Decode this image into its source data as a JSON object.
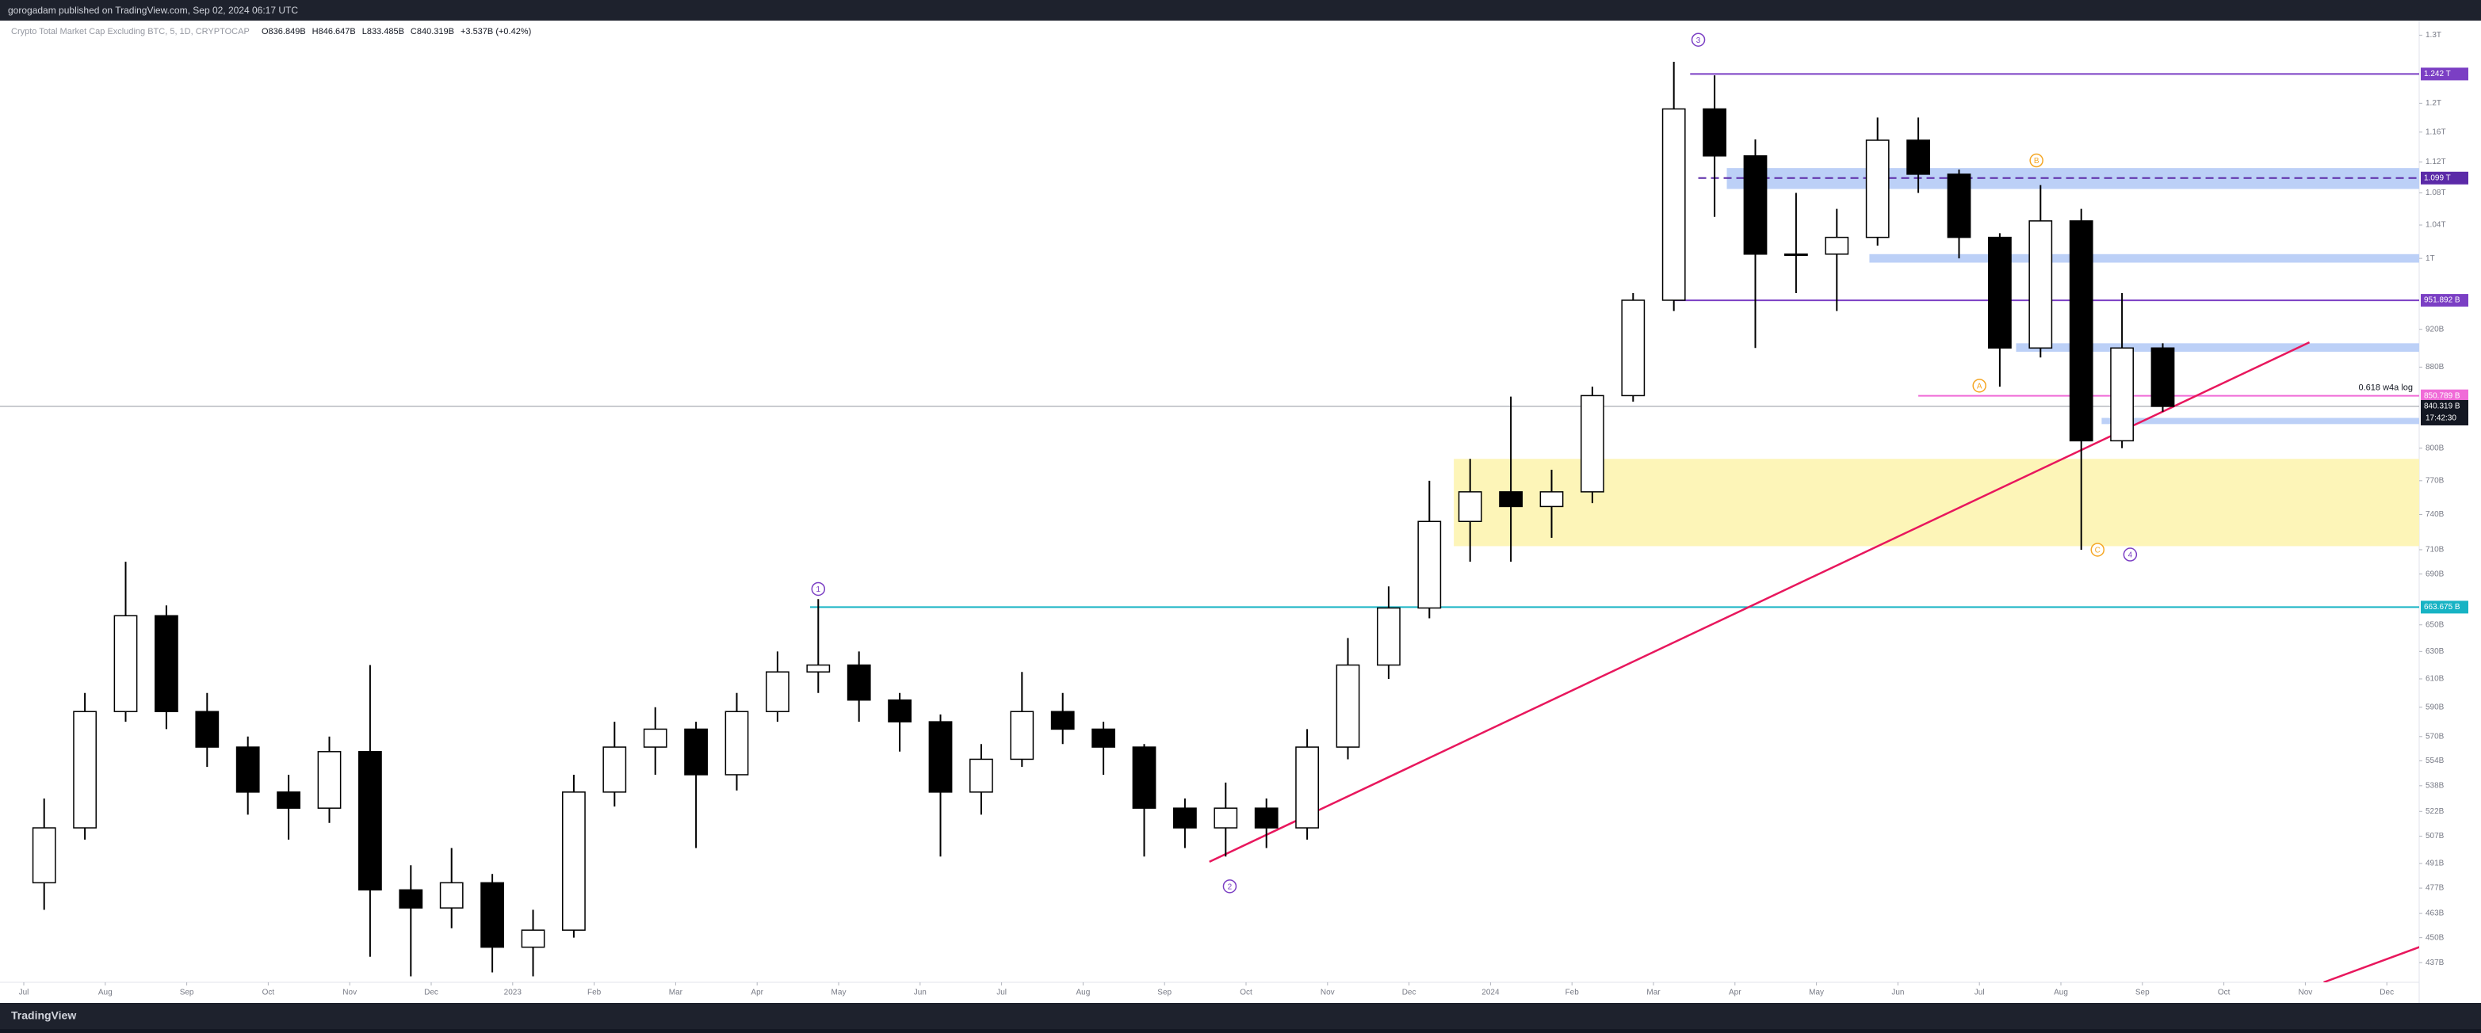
{
  "header": {
    "publisher": "gorogadam published on TradingView.com, Sep 02, 2024 06:17 UTC"
  },
  "footer": {
    "brand": "TradingView"
  },
  "chart_data": {
    "type": "candlestick",
    "title": "Crypto Total Market Cap Excluding BTC, 5, 1D, CRYPTOCAP",
    "ohlc_legend": [
      "O836.849B",
      "H846.647B",
      "L833.485B",
      "C840.319B",
      "+3.537B (+0.42%)"
    ],
    "categories": [
      "Jul",
      null,
      "Aug",
      null,
      "Sep",
      null,
      "Oct",
      null,
      "Nov",
      null,
      "Dec",
      null,
      "2023",
      null,
      "Feb",
      null,
      "Mar",
      null,
      "Apr",
      null,
      "May",
      null,
      "Jun",
      null,
      "Jul",
      null,
      "Aug",
      null,
      "Sep",
      null,
      "Oct",
      null,
      "Nov",
      null,
      "Dec",
      null,
      "2024",
      null,
      "Feb",
      null,
      "Mar",
      null,
      "Apr",
      null,
      "May",
      null,
      "Jun",
      null,
      "Jul",
      null,
      "Aug",
      null,
      "Sep",
      null,
      "Oct",
      null,
      "Nov",
      null,
      "Dec",
      null
    ],
    "open": [
      480,
      512,
      587,
      657,
      587,
      563,
      534,
      524,
      560,
      476,
      466,
      480,
      445,
      454,
      534,
      563,
      575,
      545,
      587,
      615,
      620,
      595,
      580,
      534,
      555,
      587,
      575,
      563,
      524,
      512,
      524,
      512,
      563,
      620,
      663,
      734,
      760,
      747,
      760,
      851,
      952,
      1192,
      1128,
      1005,
      1005,
      1025,
      1149,
      1104,
      1025,
      900,
      1045,
      807,
      900,
      null,
      null,
      null,
      null,
      null,
      null,
      null
    ],
    "high": [
      530,
      600,
      700,
      665,
      600,
      570,
      545,
      570,
      620,
      490,
      500,
      485,
      465,
      545,
      580,
      590,
      580,
      600,
      630,
      670,
      630,
      600,
      585,
      565,
      615,
      600,
      580,
      565,
      530,
      540,
      530,
      575,
      640,
      680,
      770,
      790,
      850,
      780,
      860,
      960,
      1260,
      1240,
      1150,
      1080,
      1060,
      1180,
      1180,
      1110,
      1030,
      1090,
      1060,
      960,
      905,
      null,
      null,
      null,
      null,
      null,
      null,
      null
    ],
    "low": [
      465,
      505,
      580,
      575,
      550,
      520,
      505,
      515,
      440,
      430,
      455,
      432,
      430,
      450,
      525,
      545,
      500,
      535,
      580,
      600,
      580,
      560,
      495,
      520,
      550,
      565,
      545,
      495,
      500,
      495,
      500,
      505,
      555,
      610,
      655,
      700,
      700,
      720,
      750,
      845,
      940,
      1050,
      900,
      960,
      940,
      1015,
      1080,
      1000,
      860,
      890,
      710,
      800,
      835,
      null,
      null,
      null,
      null,
      null,
      null,
      null
    ],
    "close": [
      512,
      587,
      657,
      587,
      563,
      534,
      524,
      560,
      476,
      466,
      480,
      445,
      454,
      534,
      563,
      575,
      545,
      587,
      615,
      620,
      595,
      580,
      534,
      555,
      587,
      575,
      563,
      524,
      512,
      524,
      512,
      563,
      620,
      663,
      734,
      760,
      747,
      760,
      851,
      952,
      1192,
      1128,
      1005,
      1005,
      1025,
      1149,
      1104,
      1025,
      900,
      1045,
      807,
      900,
      840.319,
      null,
      null,
      null,
      null,
      null,
      null,
      null
    ],
    "colors": {
      "up": "#ffffff",
      "down": "#000000",
      "wick": "#000000"
    },
    "log_scale": true,
    "ylim": [
      427,
      1320
    ],
    "yticks": [
      {
        "value": 1300,
        "label": "1.3T"
      },
      {
        "value": 1200,
        "label": "1.2T"
      },
      {
        "value": 1160,
        "label": "1.16T"
      },
      {
        "value": 1120,
        "label": "1.12T"
      },
      {
        "value": 1080,
        "label": "1.08T"
      },
      {
        "value": 1040,
        "label": "1.04T"
      },
      {
        "value": 1000,
        "label": "1T"
      },
      {
        "value": 920,
        "label": "920B"
      },
      {
        "value": 880,
        "label": "880B"
      },
      {
        "value": 800,
        "label": "800B"
      },
      {
        "value": 770,
        "label": "770B"
      },
      {
        "value": 740,
        "label": "740B"
      },
      {
        "value": 710,
        "label": "710B"
      },
      {
        "value": 690,
        "label": "690B"
      },
      {
        "value": 650,
        "label": "650B"
      },
      {
        "value": 630,
        "label": "630B"
      },
      {
        "value": 610,
        "label": "610B"
      },
      {
        "value": 590,
        "label": "590B"
      },
      {
        "value": 570,
        "label": "570B"
      },
      {
        "value": 554,
        "label": "554B"
      },
      {
        "value": 538,
        "label": "538B"
      },
      {
        "value": 522,
        "label": "522B"
      },
      {
        "value": 507,
        "label": "507B"
      },
      {
        "value": 491,
        "label": "491B"
      },
      {
        "value": 477,
        "label": "477B"
      },
      {
        "value": 463,
        "label": "463B"
      },
      {
        "value": 450,
        "label": "450B"
      },
      {
        "value": 437,
        "label": "437B"
      }
    ],
    "levels": [
      {
        "value": 1242,
        "label": "1.242 T",
        "color": "#7b3fc4",
        "from": 40.4,
        "dashed": false
      },
      {
        "value": 1099,
        "label": "1.099 T",
        "color": "#5b2aa8",
        "from": 40.6,
        "dashed": true
      },
      {
        "value": 951.892,
        "label": "951.892 B",
        "color": "#7b3fc4",
        "from": 40.0,
        "dashed": false
      },
      {
        "value": 850.789,
        "label": "850.789 B",
        "color": "#f06bd8",
        "from": 46.0,
        "dashed": false,
        "note": "0.618  w4a log"
      },
      {
        "value": 663.675,
        "label": "663.675 B",
        "color": "#17b3c4",
        "from": 18.8,
        "dashed": false
      }
    ],
    "last_price": {
      "value": 840.319,
      "label": "840.319 B",
      "countdown": "17:42:30"
    },
    "zones": [
      {
        "from": 34.6,
        "low": 713,
        "high": 790,
        "color": "#fdf5b8"
      },
      {
        "from": 41.3,
        "low": 1085,
        "high": 1112,
        "color": "#bcd0f7"
      },
      {
        "from": 44.8,
        "low": 995,
        "high": 1005,
        "color": "#bcd0f7"
      },
      {
        "from": 48.4,
        "low": 896,
        "high": 905,
        "color": "#bcd0f7"
      },
      {
        "from": 50.5,
        "low": 823,
        "high": 829,
        "color": "#bcd0f7"
      }
    ],
    "trendlines": [
      {
        "x": [
          28.6,
          55.6
        ],
        "y": [
          492,
          906
        ],
        "color": "#e8175d"
      },
      {
        "x": [
          55.95,
          58.8
        ],
        "y": [
          427,
          449
        ],
        "color": "#e8175d"
      }
    ],
    "annotations": [
      {
        "text": "1",
        "x": 19.0,
        "y": 678,
        "color": "#7b3fc4"
      },
      {
        "text": "2",
        "x": 29.1,
        "y": 478,
        "color": "#7b3fc4"
      },
      {
        "text": "3",
        "x": 40.6,
        "y": 1293,
        "color": "#7b3fc4"
      },
      {
        "text": "4",
        "x": 51.2,
        "y": 706,
        "color": "#7b3fc4"
      },
      {
        "text": "A",
        "x": 47.5,
        "y": 861,
        "color": "#f5a623"
      },
      {
        "text": "B",
        "x": 48.9,
        "y": 1122,
        "color": "#f5a623"
      },
      {
        "text": "C",
        "x": 50.4,
        "y": 710,
        "color": "#f5a623"
      }
    ]
  }
}
